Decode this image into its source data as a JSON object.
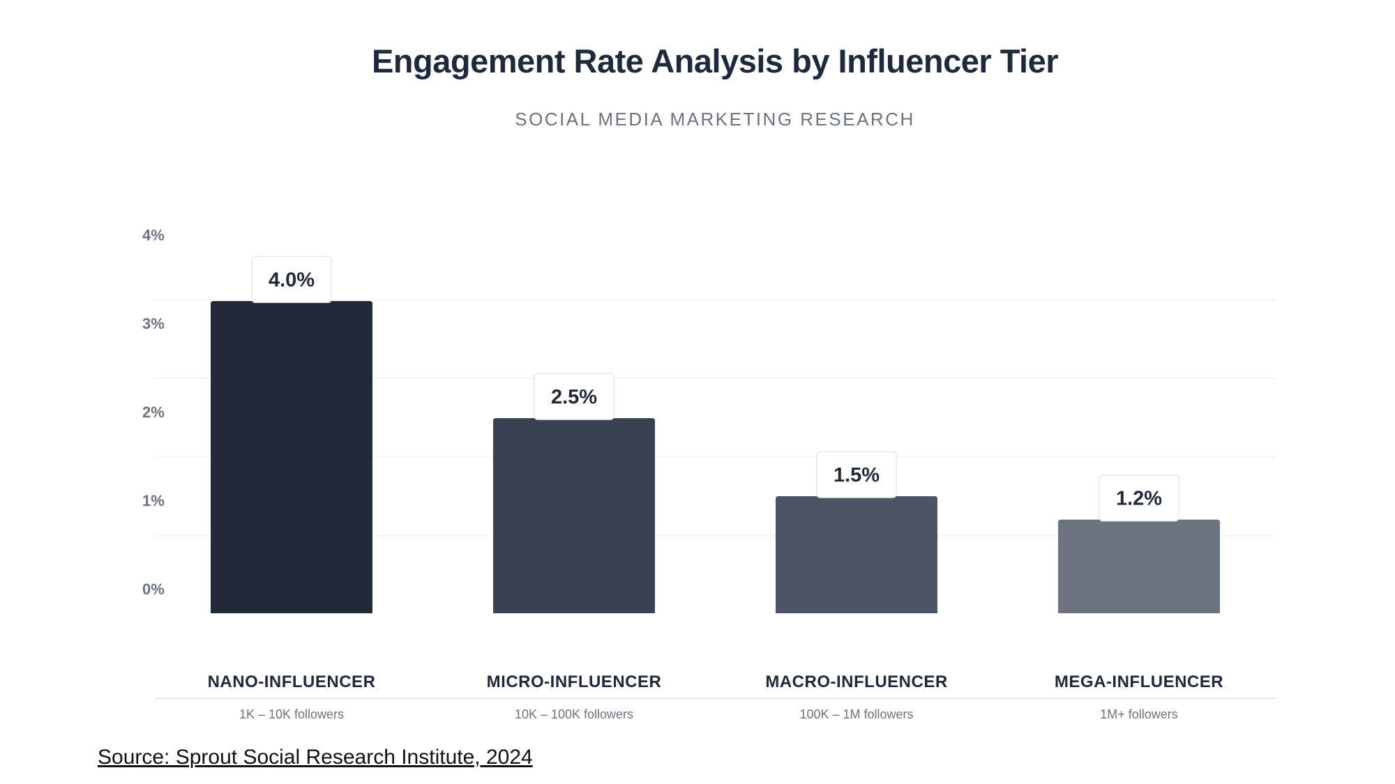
{
  "header": {
    "title": "Engagement Rate Analysis by Influencer Tier",
    "subtitle": "SOCIAL MEDIA MARKETING RESEARCH"
  },
  "source": "Source: Sprout Social Research Institute, 2024",
  "chart_data": {
    "type": "bar",
    "title": "Engagement Rate Analysis by Influencer Tier",
    "subtitle": "SOCIAL MEDIA MARKETING RESEARCH",
    "xlabel": "",
    "ylabel": "",
    "ylim": [
      0,
      4
    ],
    "yticks": [
      0,
      1,
      2,
      3,
      4
    ],
    "ytick_labels": [
      "0%",
      "1%",
      "2%",
      "3%",
      "4%"
    ],
    "grid": true,
    "categories": [
      "NANO-INFLUENCER",
      "MICRO-INFLUENCER",
      "MACRO-INFLUENCER",
      "MEGA-INFLUENCER"
    ],
    "category_subtitles": [
      "1K – 10K followers",
      "10K – 100K followers",
      "100K – 1M followers",
      "1M+ followers"
    ],
    "values": [
      4.0,
      2.5,
      1.5,
      1.2
    ],
    "value_labels": [
      "4.0%",
      "2.5%",
      "1.5%",
      "1.2%"
    ],
    "colors": [
      "#222a39",
      "#394252",
      "#4c5565",
      "#6d7280"
    ]
  }
}
